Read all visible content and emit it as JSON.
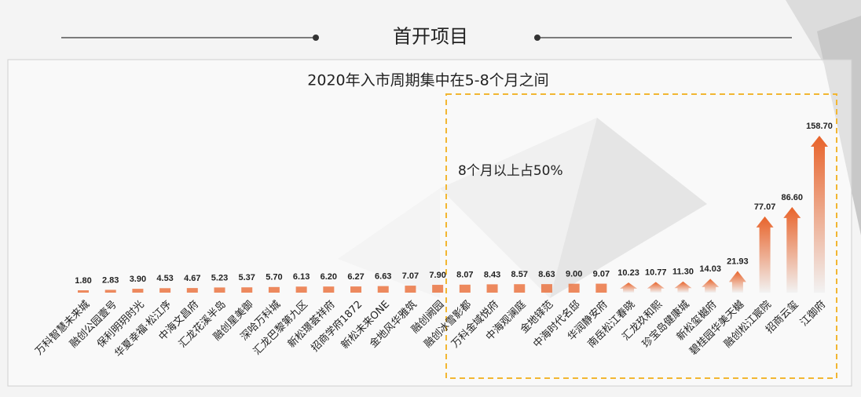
{
  "chart_data": {
    "type": "bar",
    "title": "首开项目",
    "subtitle": "2020年入市周期集中在5-8个月之间",
    "annotation": "8个月以上占50%",
    "categories": [
      "万科智慧未来城",
      "融创公园壹号",
      "保利明玥时光",
      "华夏幸福·松江序",
      "中海文昌府",
      "汇龙花溪半岛",
      "融创星美御",
      "深哈万科城",
      "汇龙巴黎第九区",
      "新松璟荟祥府",
      "招商学府1872",
      "新松未来ONE",
      "金地风华雅筑",
      "融创阙园",
      "融创冰雪影都",
      "万科金域悦府",
      "中海观澜庭",
      "金地铎范",
      "中海时代名邸",
      "华润静安府",
      "南岳松江春晓",
      "汇龙玖和熙",
      "珍宝岛健康城",
      "新松玺樾府",
      "碧桂园华美天樾",
      "融创松江宸院",
      "招商云玺",
      "江御府"
    ],
    "values": [
      1.8,
      2.83,
      3.9,
      4.53,
      4.67,
      5.23,
      5.37,
      5.7,
      6.13,
      6.2,
      6.27,
      6.63,
      7.07,
      7.9,
      8.07,
      8.43,
      8.57,
      8.63,
      9.0,
      9.07,
      10.23,
      10.77,
      11.3,
      14.03,
      21.93,
      77.07,
      86.6,
      158.7
    ],
    "value_labels": [
      "1.80",
      "2.83",
      "3.90",
      "4.53",
      "4.67",
      "5.23",
      "5.37",
      "5.70",
      "6.13",
      "6.20",
      "6.27",
      "6.63",
      "7.07",
      "7.90",
      "8.07",
      "8.43",
      "8.57",
      "8.63",
      "9.00",
      "9.07",
      "10.23",
      "10.77",
      "11.30",
      "14.03",
      "21.93",
      "77.07",
      "86.60",
      "158.70"
    ],
    "color": "#e8632a"
  }
}
